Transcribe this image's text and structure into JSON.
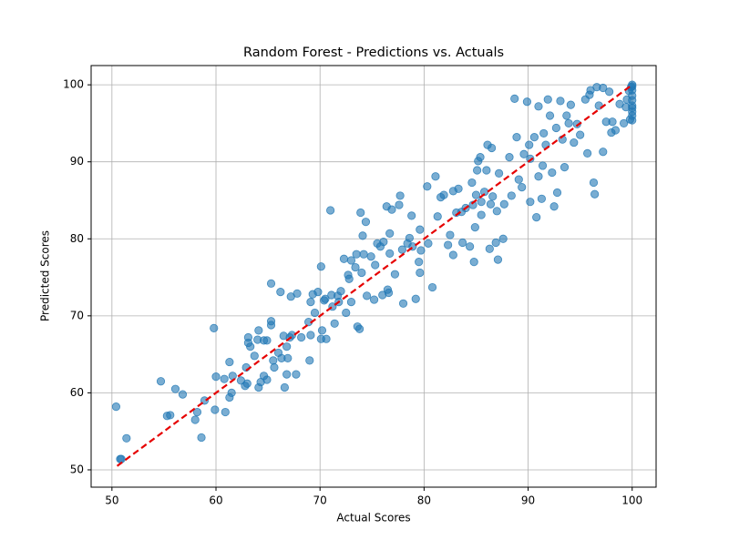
{
  "chart_data": {
    "type": "scatter",
    "title": "Random Forest - Predictions vs. Actuals",
    "x_label": "Actual Scores",
    "y_label": "Predicted Scores",
    "xlim": [
      48,
      102.3
    ],
    "ylim": [
      47.75,
      102.5
    ],
    "xticks": [
      50,
      60,
      70,
      80,
      90,
      100
    ],
    "yticks": [
      50,
      60,
      70,
      80,
      90,
      100
    ],
    "grid": true,
    "series": [
      {
        "color": "#1f77b4",
        "x": [
          50.4,
          50.8,
          50.9,
          51.4,
          54.7,
          55.3,
          55.6,
          56.1,
          56.8,
          58.0,
          58.2,
          58.6,
          58.9,
          59.8,
          59.9,
          60,
          60.8,
          60.9,
          61.3,
          61.3,
          61.6,
          61.5,
          62.4,
          62.8,
          62.9,
          63,
          63.1,
          63.1,
          63.3,
          63.7,
          64,
          64.1,
          64.1,
          64.3,
          64.6,
          64.6,
          64.9,
          64.9,
          65.3,
          65.3,
          65.3,
          65.5,
          65.6,
          66,
          66.2,
          66.3,
          66.5,
          66.6,
          66.8,
          66.8,
          66.9,
          67.1,
          67.2,
          67.3,
          67.7,
          67.8,
          68.2,
          68.9,
          69,
          69.1,
          69.1,
          69.3,
          69.5,
          69.8,
          70.1,
          70.1,
          70.2,
          70.4,
          70.5,
          70.6,
          71,
          71.1,
          71.2,
          71.4,
          71.7,
          71.8,
          72,
          72.3,
          72.5,
          72.7,
          72.8,
          73,
          73,
          73.4,
          73.5,
          73.6,
          73.8,
          73.9,
          74,
          74.1,
          74.2,
          74.4,
          74.5,
          74.9,
          75.2,
          75.3,
          75.5,
          75.8,
          76,
          76.1,
          76.5,
          76.6,
          76.7,
          76.7,
          76.9,
          76.4,
          77.2,
          77.7,
          77.6,
          77.9,
          78,
          78.4,
          78.6,
          78.8,
          78.9,
          79.2,
          79.5,
          79.6,
          79.6,
          79.7,
          80.3,
          80.4,
          80.8,
          81.1,
          81.3,
          81.6,
          81.9,
          82.3,
          82.5,
          82.8,
          82.8,
          83.1,
          83.3,
          83.6,
          83.7,
          84,
          84.4,
          84.6,
          84.7,
          84.8,
          84.9,
          85,
          85.1,
          85.2,
          85.4,
          85.5,
          85.5,
          85.8,
          86,
          86.1,
          86.3,
          86.4,
          86.5,
          86.6,
          86.9,
          87,
          87.1,
          87.2,
          87.6,
          87.7,
          88.2,
          88.4,
          88.7,
          88.9,
          89.1,
          89.4,
          89.6,
          89.9,
          90.1,
          90.2,
          90.2,
          90.6,
          90.8,
          91,
          91,
          91.3,
          91.4,
          91.5,
          91.7,
          91.9,
          92.1,
          92.3,
          92.5,
          92.7,
          92.8,
          93.1,
          93.3,
          93.5,
          93.7,
          93.9,
          94.1,
          94.4,
          94.7,
          95,
          95.5,
          95.7,
          95.9,
          96,
          96.3,
          96.4,
          96.6,
          96.8,
          97.2,
          97.2,
          97.5,
          97.8,
          98,
          98.1,
          98.4,
          98.8,
          99.2,
          99.5,
          99.8,
          100,
          100,
          100,
          100,
          100,
          100,
          100,
          100,
          100,
          100,
          99.9,
          99.7,
          99.4
        ],
        "values": [
          58.2,
          51.4,
          51.4,
          54.1,
          61.5,
          57,
          57.1,
          60.5,
          59.8,
          56.5,
          57.5,
          54.2,
          59,
          68.4,
          57.8,
          62.1,
          61.8,
          57.5,
          59.4,
          64,
          62.2,
          60,
          61.6,
          60.9,
          63.3,
          61.2,
          66.5,
          67.2,
          66,
          64.8,
          66.9,
          60.7,
          68.1,
          61.4,
          62.2,
          66.8,
          61.7,
          66.8,
          69.3,
          74.2,
          68.8,
          64.2,
          63.3,
          65.2,
          73.1,
          64.5,
          67.4,
          60.7,
          62.4,
          66,
          64.5,
          67.2,
          72.5,
          67.5,
          62.4,
          72.9,
          67.2,
          69.2,
          64.2,
          67.5,
          71.8,
          72.8,
          70.4,
          73.1,
          76.4,
          67,
          68.1,
          72,
          72.2,
          67,
          83.7,
          72.7,
          71.2,
          69,
          72.6,
          71.8,
          73.2,
          77.4,
          70.4,
          75.3,
          74.8,
          71.8,
          77.2,
          76.3,
          78,
          68.6,
          68.3,
          83.4,
          75.6,
          80.4,
          78,
          82.2,
          72.6,
          77.7,
          72.1,
          76.6,
          79.4,
          79,
          72.7,
          79.6,
          73.4,
          73,
          78.1,
          80.7,
          83.8,
          84.2,
          75.4,
          85.6,
          84.4,
          78.6,
          71.6,
          79.4,
          80.1,
          83,
          79,
          72.2,
          77,
          75.6,
          81.2,
          78.5,
          86.8,
          79.4,
          73.7,
          88.1,
          82.9,
          85.4,
          85.7,
          79.2,
          80.5,
          86.2,
          77.9,
          83.4,
          86.5,
          83.5,
          79.5,
          84,
          79,
          87.3,
          84.4,
          77,
          81.5,
          85.7,
          88.9,
          90.1,
          90.6,
          83.1,
          84.8,
          86.1,
          88.9,
          92.2,
          78.7,
          84.5,
          91.8,
          85.5,
          79.5,
          83.6,
          77.3,
          88.5,
          80,
          84.5,
          90.6,
          85.6,
          98.2,
          93.2,
          87.7,
          86.7,
          91,
          97.8,
          92.2,
          84.8,
          90.4,
          93.2,
          82.8,
          88.1,
          97.2,
          85.2,
          89.5,
          93.7,
          92.2,
          98.1,
          96,
          88.6,
          84.2,
          94.4,
          86,
          97.9,
          92.9,
          89.3,
          96,
          95,
          97.4,
          92.5,
          94.9,
          93.5,
          98.1,
          91.1,
          98.7,
          99.3,
          87.3,
          85.8,
          99.7,
          97.3,
          99.6,
          91.3,
          95.2,
          99.1,
          93.8,
          95.2,
          94.1,
          97.5,
          95,
          98.1,
          95.5,
          100,
          99.3,
          98.6,
          97.3,
          96.5,
          95.4,
          99.8,
          98,
          97,
          96,
          99.7,
          99.2,
          97.1
        ]
      }
    ],
    "reference_line": {
      "x": [
        50.5,
        100
      ],
      "y": [
        50.5,
        100
      ],
      "color": "#e60000"
    }
  }
}
